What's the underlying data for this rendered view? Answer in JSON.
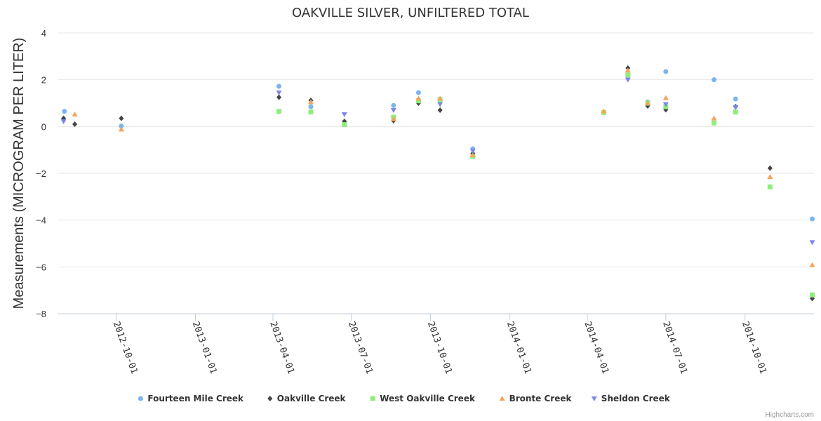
{
  "chart_data": {
    "type": "scatter",
    "title": "OAKVILLE SILVER, UNFILTERED TOTAL",
    "xlabel": "",
    "ylabel": "Measurements (MICROGRAM PER LITER)",
    "ylim": [
      -8,
      4
    ],
    "yticks": [
      -8,
      -6,
      -4,
      -2,
      0,
      2,
      4
    ],
    "xlim": [
      "2012-07-25",
      "2014-12-20"
    ],
    "xticks": [
      "2012-10-01",
      "2013-01-01",
      "2013-04-01",
      "2013-07-01",
      "2013-10-01",
      "2014-01-01",
      "2014-04-01",
      "2014-07-01",
      "2014-10-01"
    ],
    "grid": true,
    "legend_position": "bottom-center",
    "series": [
      {
        "name": "Fourteen Mile Creek",
        "color": "#7cb5ec",
        "marker": "circle",
        "points": [
          [
            "2012-08-02",
            0.65
          ],
          [
            "2012-10-07",
            0.02
          ],
          [
            "2013-04-08",
            1.72
          ],
          [
            "2013-05-15",
            0.85
          ],
          [
            "2013-08-19",
            0.9
          ],
          [
            "2013-09-17",
            1.45
          ],
          [
            "2013-11-19",
            -0.95
          ],
          [
            "2014-06-10",
            1.05
          ],
          [
            "2014-07-01",
            2.35
          ],
          [
            "2014-08-26",
            2.0
          ],
          [
            "2014-09-20",
            1.18
          ],
          [
            "2014-12-18",
            -3.95
          ]
        ]
      },
      {
        "name": "Oakville Creek",
        "color": "#434348",
        "marker": "diamond",
        "points": [
          [
            "2012-08-01",
            0.35
          ],
          [
            "2012-08-14",
            0.1
          ],
          [
            "2012-10-07",
            0.35
          ],
          [
            "2013-04-08",
            1.25
          ],
          [
            "2013-05-15",
            1.12
          ],
          [
            "2013-06-23",
            0.22
          ],
          [
            "2013-08-19",
            0.25
          ],
          [
            "2013-09-17",
            1.0
          ],
          [
            "2013-10-12",
            0.7
          ],
          [
            "2013-11-19",
            -1.15
          ],
          [
            "2014-05-18",
            2.5
          ],
          [
            "2014-06-10",
            0.88
          ],
          [
            "2014-07-01",
            0.72
          ],
          [
            "2014-09-20",
            0.85
          ],
          [
            "2014-10-30",
            -1.78
          ],
          [
            "2014-12-18",
            -7.35
          ]
        ]
      },
      {
        "name": "West Oakville Creek",
        "color": "#90ed7d",
        "marker": "square",
        "points": [
          [
            "2013-04-08",
            0.65
          ],
          [
            "2013-05-15",
            0.62
          ],
          [
            "2013-06-23",
            0.08
          ],
          [
            "2013-08-19",
            0.4
          ],
          [
            "2013-09-17",
            1.1
          ],
          [
            "2013-10-12",
            1.15
          ],
          [
            "2013-11-19",
            -1.28
          ],
          [
            "2014-04-20",
            0.6
          ],
          [
            "2014-05-18",
            2.2
          ],
          [
            "2014-06-10",
            1.0
          ],
          [
            "2014-07-01",
            0.85
          ],
          [
            "2014-08-26",
            0.15
          ],
          [
            "2014-09-20",
            0.62
          ],
          [
            "2014-10-30",
            -2.58
          ],
          [
            "2014-12-18",
            -7.2
          ]
        ]
      },
      {
        "name": "Bronte Creek",
        "color": "#f7a35c",
        "marker": "triangle",
        "points": [
          [
            "2012-08-14",
            0.52
          ],
          [
            "2012-10-07",
            -0.12
          ],
          [
            "2013-05-15",
            1.05
          ],
          [
            "2013-08-19",
            0.32
          ],
          [
            "2013-09-17",
            1.2
          ],
          [
            "2013-10-12",
            1.2
          ],
          [
            "2013-11-19",
            -1.22
          ],
          [
            "2014-04-20",
            0.65
          ],
          [
            "2014-05-18",
            2.4
          ],
          [
            "2014-06-10",
            1.0
          ],
          [
            "2014-07-01",
            1.22
          ],
          [
            "2014-08-26",
            0.35
          ],
          [
            "2014-10-30",
            -2.15
          ],
          [
            "2014-12-18",
            -5.92
          ]
        ]
      },
      {
        "name": "Sheldon Creek",
        "color": "#8085e9",
        "marker": "triangle-down",
        "points": [
          [
            "2012-08-01",
            0.22
          ],
          [
            "2013-04-08",
            1.45
          ],
          [
            "2013-06-23",
            0.52
          ],
          [
            "2013-08-19",
            0.7
          ],
          [
            "2013-10-12",
            0.95
          ],
          [
            "2013-11-19",
            -1.05
          ],
          [
            "2014-05-18",
            2.0
          ],
          [
            "2014-07-01",
            0.95
          ],
          [
            "2014-09-20",
            0.82
          ],
          [
            "2014-12-18",
            -4.95
          ]
        ]
      }
    ]
  },
  "credits": "Highcharts.com"
}
